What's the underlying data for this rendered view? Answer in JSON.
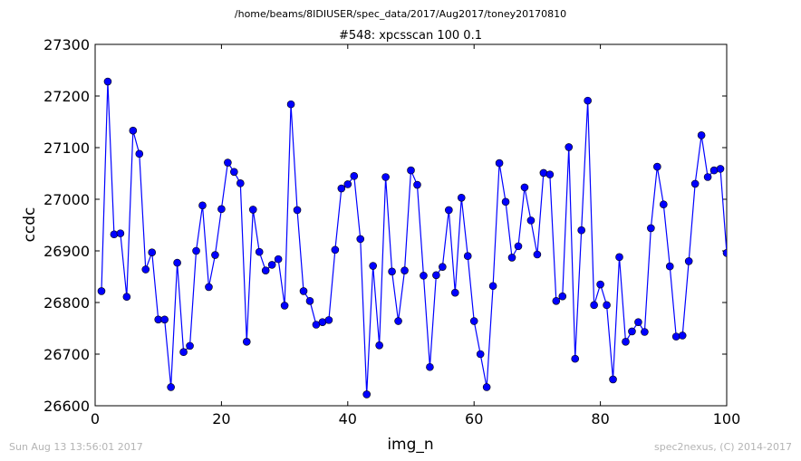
{
  "figure": {
    "suptitle": "/home/beams/8IDIUSER/spec_data/2017/Aug2017/toney20170810",
    "footer_left": "Sun Aug 13 13:56:01 2017",
    "footer_right": "spec2nexus, (C) 2014-2017",
    "line_color": "#0000ff",
    "marker_color": "#0000ff"
  },
  "chart_data": {
    "type": "line",
    "title": "#548: xpcsscan 100 0.1",
    "xlabel": "img_n",
    "ylabel": "ccdc",
    "xlim": [
      0,
      100
    ],
    "ylim": [
      26600,
      27300
    ],
    "xticks": [
      0,
      20,
      40,
      60,
      80,
      100
    ],
    "yticks": [
      26600,
      26700,
      26800,
      26900,
      27000,
      27100,
      27200,
      27300
    ],
    "grid": false,
    "series": [
      {
        "x": [
          1,
          2,
          3,
          4,
          5,
          6,
          7,
          8,
          9,
          10,
          11,
          12,
          13,
          14,
          15,
          16,
          17,
          18,
          19,
          20,
          21,
          22,
          23,
          24,
          25,
          26,
          27,
          28,
          29,
          30,
          31,
          32,
          33,
          34,
          35,
          36,
          37,
          38,
          39,
          40,
          41,
          42,
          43,
          44,
          45,
          46,
          47,
          48,
          49,
          50,
          51,
          52,
          53,
          54,
          55,
          56,
          57,
          58,
          59,
          60,
          61,
          62,
          63,
          64,
          65,
          66,
          67,
          68,
          69,
          70,
          71,
          72,
          73,
          74,
          75,
          76,
          77,
          78,
          79,
          80,
          81,
          82,
          83,
          84,
          85,
          86,
          87,
          88,
          89,
          90,
          91,
          92,
          93,
          94,
          95,
          96,
          97,
          98,
          99,
          100
        ],
        "y": [
          26822,
          27228,
          26932,
          26934,
          26811,
          27133,
          27088,
          26864,
          26897,
          26767,
          26767,
          26636,
          26877,
          26704,
          26716,
          26900,
          26988,
          26830,
          26892,
          26981,
          27071,
          27053,
          27031,
          26724,
          26980,
          26898,
          26862,
          26873,
          26884,
          26794,
          27184,
          26979,
          26822,
          26803,
          26757,
          26762,
          26766,
          26902,
          27021,
          27029,
          27045,
          26923,
          26622,
          26871,
          26717,
          27043,
          26860,
          26764,
          26862,
          27056,
          27028,
          26852,
          26675,
          26853,
          26869,
          26979,
          26819,
          27003,
          26890,
          26764,
          26700,
          26636,
          26832,
          27070,
          26995,
          26887,
          26909,
          27023,
          26959,
          26893,
          27051,
          27048,
          26803,
          26812,
          27101,
          26691,
          26940,
          27191,
          26795,
          26835,
          26795,
          26651,
          26888,
          26724,
          26744,
          26762,
          26743,
          26944,
          27063,
          26990,
          26870,
          26734,
          26736,
          26880,
          27030,
          27124,
          27043,
          27056,
          27059,
          26896
        ]
      }
    ]
  }
}
